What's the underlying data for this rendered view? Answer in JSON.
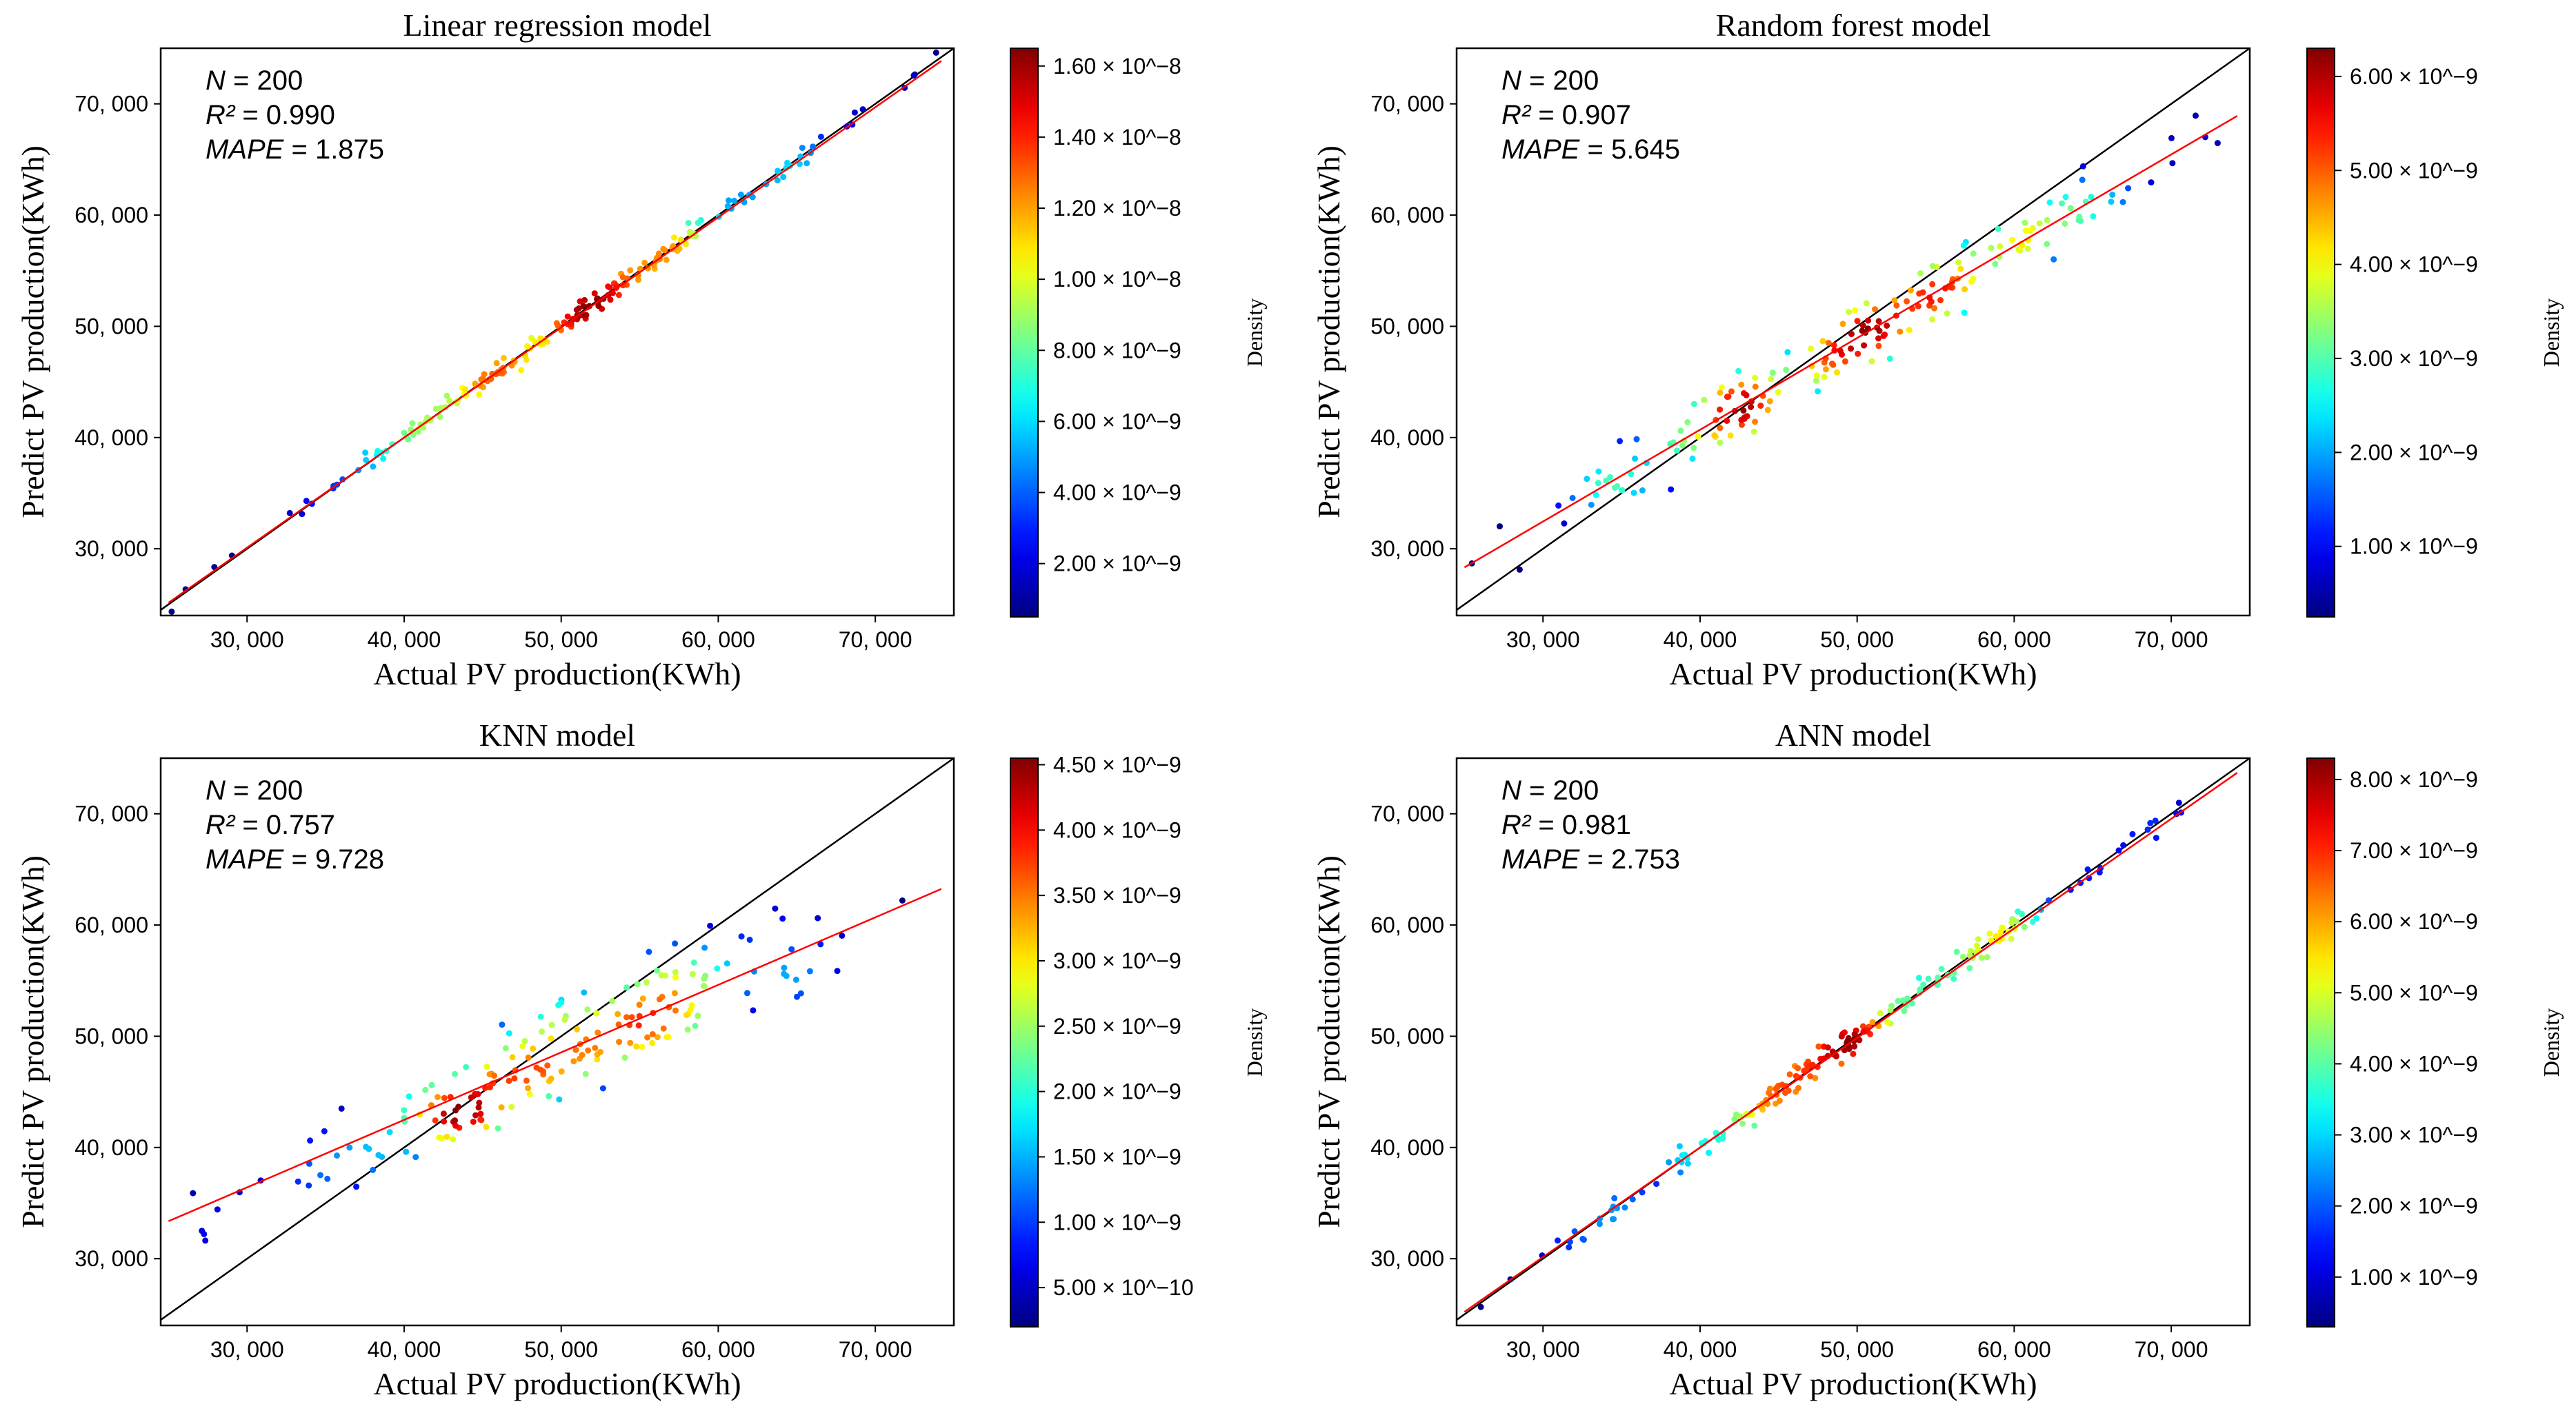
{
  "chart_data": [
    {
      "type": "scatter",
      "title": "Linear regression model",
      "xlabel": "Actual PV production(KWh)",
      "ylabel": "Predict PV production(KWh)",
      "xlim": [
        24500,
        75000
      ],
      "ylim": [
        24000,
        75000
      ],
      "xticks": [
        30000,
        40000,
        50000,
        60000,
        70000
      ],
      "yticks": [
        30000,
        40000,
        50000,
        60000,
        70000
      ],
      "tick_labels": [
        "30, 000",
        "40, 000",
        "50, 000",
        "60, 000",
        "70, 000"
      ],
      "stats": [
        "N = 200",
        "R² = 0.990",
        "MAPE = 1.875"
      ],
      "fit_line": {
        "slope": 0.99,
        "intercept": 400
      },
      "identity_line": true,
      "colorbar": {
        "label": "Density",
        "min": 5e-10,
        "max": 1.65e-08,
        "ticks": [
          2e-09,
          4e-09,
          6e-09,
          8e-09,
          1e-08,
          1.2e-08,
          1.4e-08,
          1.6e-08
        ],
        "tick_labels": [
          "2.00 × 10^−9",
          "4.00 × 10^−9",
          "6.00 × 10^−9",
          "8.00 × 10^−9",
          "1.00 × 10^−8",
          "1.20 × 10^−8",
          "1.40 × 10^−8",
          "1.60 × 10^−8"
        ]
      },
      "noise": 900,
      "seed": 11
    },
    {
      "type": "scatter",
      "title": "Random forest model",
      "xlabel": "Actual PV production(KWh)",
      "ylabel": "Predict PV production(KWh)",
      "xlim": [
        24500,
        75000
      ],
      "ylim": [
        24000,
        75000
      ],
      "xticks": [
        30000,
        40000,
        50000,
        60000,
        70000
      ],
      "yticks": [
        30000,
        40000,
        50000,
        60000,
        70000
      ],
      "tick_labels": [
        "30, 000",
        "40, 000",
        "50, 000",
        "60, 000",
        "70, 000"
      ],
      "stats": [
        "N = 200",
        "R² = 0.907",
        "MAPE = 5.645"
      ],
      "fit_line": {
        "slope": 0.825,
        "intercept": 7700
      },
      "identity_line": true,
      "colorbar": {
        "label": "Density",
        "min": 2.5e-10,
        "max": 6.3e-09,
        "ticks": [
          1e-09,
          2e-09,
          3e-09,
          4e-09,
          5e-09,
          6e-09
        ],
        "tick_labels": [
          "1.00 × 10^−9",
          "2.00 × 10^−9",
          "3.00 × 10^−9",
          "4.00 × 10^−9",
          "5.00 × 10^−9",
          "6.00 × 10^−9"
        ]
      },
      "noise": 3000,
      "seed": 23
    },
    {
      "type": "scatter",
      "title": "KNN model",
      "xlabel": "Actual PV production(KWh)",
      "ylabel": "Predict PV production(KWh)",
      "xlim": [
        24500,
        75000
      ],
      "ylim": [
        24000,
        75000
      ],
      "xticks": [
        30000,
        40000,
        50000,
        60000,
        70000
      ],
      "yticks": [
        30000,
        40000,
        50000,
        60000,
        70000
      ],
      "tick_labels": [
        "30, 000",
        "40, 000",
        "50, 000",
        "60, 000",
        "70, 000"
      ],
      "stats": [
        "N = 200",
        "R² = 0.757",
        "MAPE = 9.728"
      ],
      "fit_line": {
        "slope": 0.607,
        "intercept": 18200
      },
      "identity_line": true,
      "colorbar": {
        "label": "Density",
        "min": 2e-10,
        "max": 4.55e-09,
        "ticks": [
          5e-10,
          1e-09,
          1.5e-09,
          2e-09,
          2.5e-09,
          3e-09,
          3.5e-09,
          4e-09,
          4.5e-09
        ],
        "tick_labels": [
          "5.00 × 10^−10",
          "1.00 × 10^−9",
          "1.50 × 10^−9",
          "2.00 × 10^−9",
          "2.50 × 10^−9",
          "3.00 × 10^−9",
          "3.50 × 10^−9",
          "4.00 × 10^−9",
          "4.50 × 10^−9"
        ]
      },
      "noise": 4500,
      "seed": 37
    },
    {
      "type": "scatter",
      "title": "ANN model",
      "xlabel": "Actual PV production(KWh)",
      "ylabel": "Predict PV production(KWh)",
      "xlim": [
        24500,
        75000
      ],
      "ylim": [
        24000,
        75000
      ],
      "xticks": [
        30000,
        40000,
        50000,
        60000,
        70000
      ],
      "yticks": [
        30000,
        40000,
        50000,
        60000,
        70000
      ],
      "tick_labels": [
        "30, 000",
        "40, 000",
        "50, 000",
        "60, 000",
        "70, 000"
      ],
      "stats": [
        "N = 200",
        "R² = 0.981",
        "MAPE = 2.753"
      ],
      "fit_line": {
        "slope": 0.985,
        "intercept": 600
      },
      "identity_line": true,
      "colorbar": {
        "label": "Density",
        "min": 3e-10,
        "max": 8.3e-09,
        "ticks": [
          1e-09,
          2e-09,
          3e-09,
          4e-09,
          5e-09,
          6e-09,
          7e-09,
          8e-09
        ],
        "tick_labels": [
          "1.00 × 10^−9",
          "2.00 × 10^−9",
          "3.00 × 10^−9",
          "4.00 × 10^−9",
          "5.00 × 10^−9",
          "6.00 × 10^−9",
          "7.00 × 10^−9",
          "8.00 × 10^−9"
        ]
      },
      "noise": 1300,
      "seed": 53
    }
  ]
}
